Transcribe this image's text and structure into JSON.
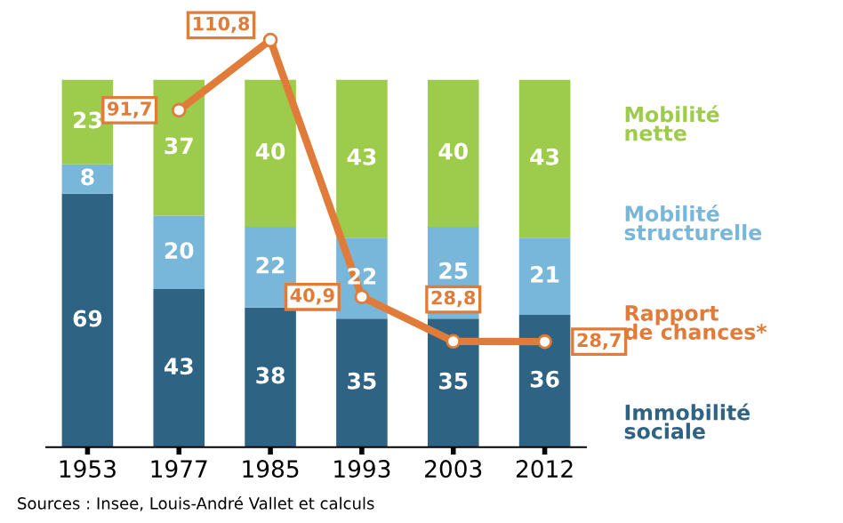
{
  "chart_data": {
    "type": "bar",
    "stacked": true,
    "categories": [
      "1953",
      "1977",
      "1985",
      "1993",
      "2003",
      "2012"
    ],
    "series": [
      {
        "name": "Immobilité sociale",
        "color": "#2e6384",
        "values": [
          69,
          43,
          38,
          35,
          35,
          36
        ]
      },
      {
        "name": "Mobilité structurelle",
        "color": "#78b7d9",
        "values": [
          8,
          20,
          22,
          22,
          25,
          21
        ]
      },
      {
        "name": "Mobilité nette",
        "color": "#9dcb4c",
        "values": [
          23,
          37,
          40,
          43,
          40,
          43
        ]
      },
      {
        "name": "Rapport de chances*",
        "type": "line",
        "color": "#e07b39",
        "marker": "circle",
        "values": [
          null,
          91.7,
          110.8,
          40.9,
          28.8,
          28.7
        ],
        "value_labels": [
          null,
          "91,7",
          "110,8",
          "40,9",
          "28,8",
          "28,7"
        ]
      }
    ],
    "data_labels": true,
    "tick_labels": "x",
    "grid": false,
    "legend": "right",
    "annotations": [
      "Sources : Insee, Louis-André Vallet et calculs"
    ]
  }
}
